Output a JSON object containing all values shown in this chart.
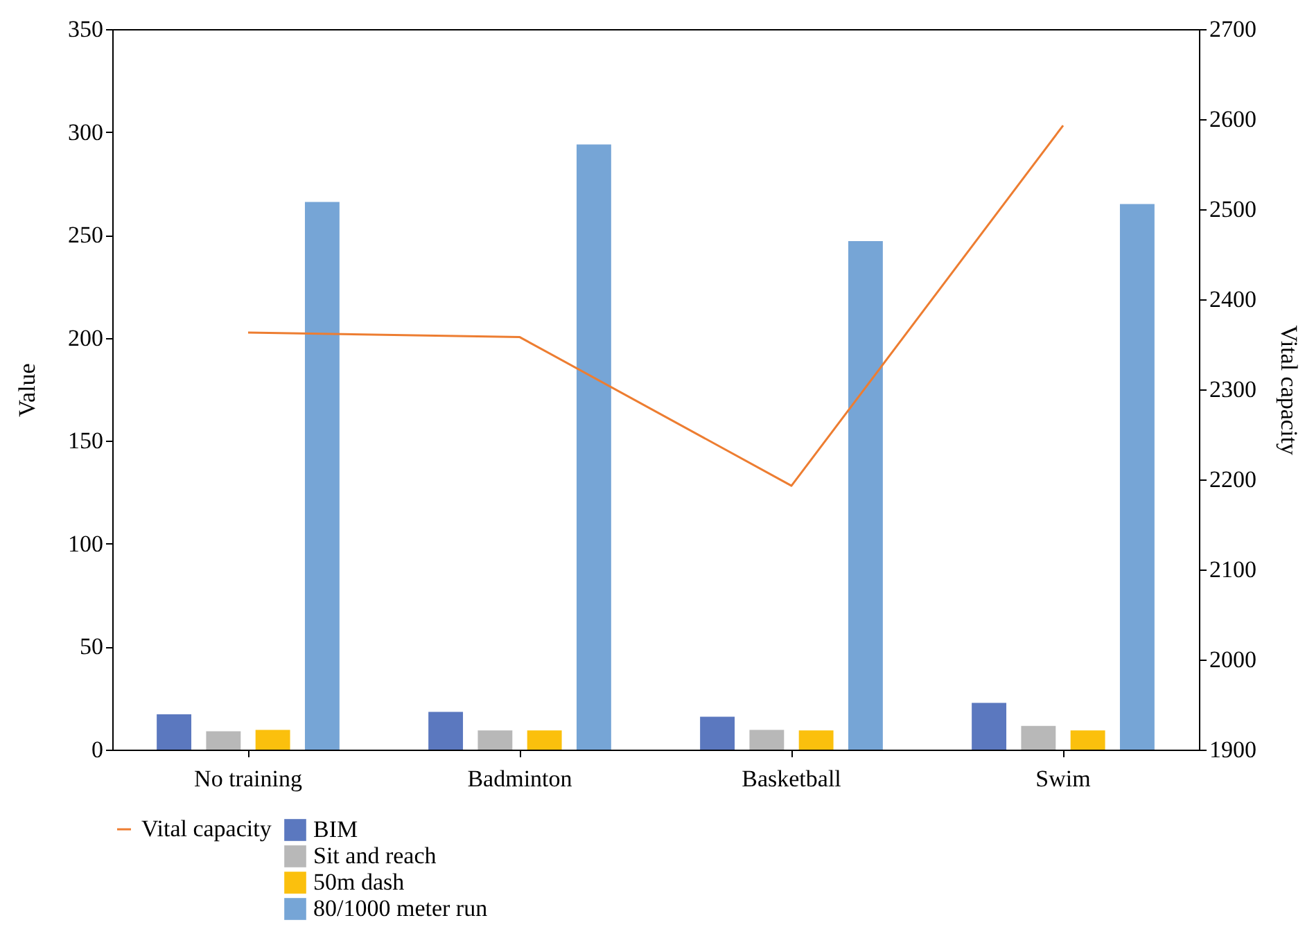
{
  "chart_data": {
    "type": "bar",
    "ylabel": "Value",
    "y2label": "Vital capacity",
    "categories": [
      "No training",
      "Badminton",
      "Basketball",
      "Swim"
    ],
    "series": [
      {
        "name": "BIM",
        "color": "#5b78bf",
        "values": [
          17.2,
          18.3,
          16,
          22.7
        ]
      },
      {
        "name": "Sit and reach",
        "color": "#b8b8b8",
        "values": [
          8.9,
          9.3,
          9.6,
          11.5
        ]
      },
      {
        "name": "50m dash",
        "color": "#fbc00d",
        "values": [
          9.6,
          9.3,
          9.3,
          9.3
        ]
      },
      {
        "name": "80/1000 meter run",
        "color": "#76a5d6",
        "values": [
          266,
          294,
          247,
          265
        ]
      },
      {
        "name": "Vital capacity",
        "color": "#ed7d31",
        "type": "line",
        "axis": "y2",
        "values": [
          2363,
          2358,
          2193,
          2593
        ]
      }
    ],
    "ylim": [
      0,
      350
    ],
    "yticks": [
      0,
      50,
      100,
      150,
      200,
      250,
      300,
      350
    ],
    "y2lim": [
      1900,
      2700
    ],
    "y2ticks": [
      1900,
      2000,
      2100,
      2200,
      2300,
      2400,
      2500,
      2600,
      2700
    ],
    "grid": false,
    "legend": "bottom",
    "marker": "none"
  }
}
